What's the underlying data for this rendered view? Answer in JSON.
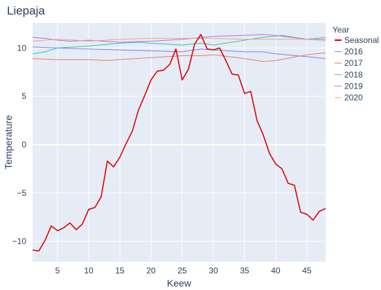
{
  "chart_data": {
    "type": "line",
    "title": "Liepaja",
    "xlabel": "Keew",
    "ylabel": "Temperature",
    "xlim": [
      1,
      48
    ],
    "ylim": [
      -12.1,
      12.6
    ],
    "x_ticks": [
      5,
      10,
      15,
      20,
      25,
      30,
      35,
      40,
      45
    ],
    "y_ticks": [
      -10,
      -5,
      0,
      5,
      10
    ],
    "y_tick_labels": [
      "−10",
      "−5",
      "0",
      "5",
      "10"
    ],
    "grid": true,
    "legend": {
      "title": "Year",
      "placement": "right"
    },
    "series": [
      {
        "name": "Seasonal",
        "color": "#e00000",
        "width": 1.6,
        "x": [
          1,
          2,
          3,
          4,
          5,
          6,
          7,
          8,
          9,
          10,
          11,
          12,
          13,
          14,
          15,
          16,
          17,
          18,
          19,
          20,
          21,
          22,
          23,
          24,
          25,
          26,
          27,
          28,
          29,
          30,
          31,
          32,
          33,
          34,
          35,
          36,
          37,
          38,
          39,
          40,
          41,
          42,
          43,
          44,
          45,
          46,
          47,
          48
        ],
        "values": [
          -10.9,
          -11.0,
          -9.9,
          -8.4,
          -8.9,
          -8.6,
          -8.1,
          -8.8,
          -8.2,
          -6.7,
          -6.5,
          -5.4,
          -1.7,
          -2.3,
          -1.3,
          0.1,
          1.4,
          3.6,
          5.1,
          6.7,
          7.6,
          7.7,
          8.3,
          9.9,
          6.7,
          7.8,
          10.4,
          11.4,
          9.9,
          9.8,
          10.0,
          8.7,
          7.3,
          7.2,
          5.3,
          5.5,
          2.5,
          1.0,
          -0.9,
          -2.0,
          -2.5,
          -4.0,
          -4.2,
          -7.0,
          -7.2,
          -7.8,
          -6.9,
          -6.6
        ]
      },
      {
        "name": "2016",
        "color": "#7b7ff0",
        "width": 1,
        "x": [
          1,
          5,
          10,
          15,
          20,
          25,
          28,
          30,
          35,
          38,
          40,
          45,
          48
        ],
        "values": [
          10.1,
          10.0,
          9.9,
          9.8,
          9.7,
          9.6,
          9.9,
          9.8,
          9.6,
          9.6,
          9.4,
          9.1,
          8.9
        ]
      },
      {
        "name": "2017",
        "color": "#ef7a5c",
        "width": 1,
        "x": [
          1,
          5,
          10,
          13,
          15,
          20,
          25,
          28,
          30,
          35,
          38,
          40,
          45,
          48
        ],
        "values": [
          8.9,
          8.8,
          8.8,
          8.7,
          8.8,
          9.0,
          9.2,
          9.2,
          9.3,
          8.9,
          8.6,
          8.7,
          9.3,
          9.5
        ]
      },
      {
        "name": "2018",
        "color": "#2dc7a2",
        "width": 1,
        "x": [
          1,
          3,
          5,
          10,
          15,
          18,
          20,
          25,
          28,
          30,
          35,
          38,
          41,
          45,
          48
        ],
        "values": [
          9.4,
          9.6,
          10.0,
          10.2,
          10.5,
          10.6,
          10.5,
          10.3,
          10.5,
          10.3,
          10.8,
          11.1,
          11.3,
          10.9,
          11.1
        ]
      },
      {
        "name": "2019",
        "color": "#b46ef0",
        "width": 1,
        "x": [
          1,
          3,
          5,
          7,
          10,
          15,
          20,
          25,
          30,
          35,
          38,
          40,
          45,
          48
        ],
        "values": [
          11.1,
          11.0,
          10.8,
          10.7,
          10.8,
          10.6,
          10.7,
          10.9,
          11.2,
          11.3,
          11.4,
          11.3,
          10.9,
          10.8
        ]
      },
      {
        "name": "2020",
        "color": "#f5a46b",
        "width": 1,
        "x": [
          1,
          3,
          5,
          8,
          10,
          15,
          20,
          25,
          30,
          35,
          40,
          45,
          48
        ],
        "values": [
          10.7,
          10.8,
          10.9,
          10.8,
          10.7,
          10.9,
          11.0,
          11.0,
          11.0,
          10.9,
          10.9,
          10.9,
          10.9
        ]
      }
    ]
  }
}
